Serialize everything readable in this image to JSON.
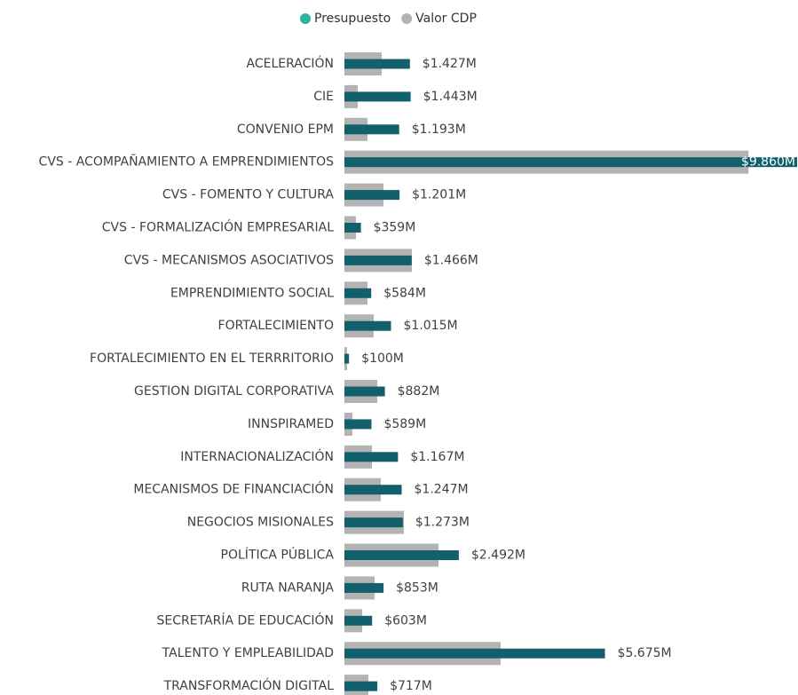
{
  "chart_data": {
    "type": "bar",
    "orientation": "horizontal",
    "categories": [
      "ACELERACIÓN",
      "CIE",
      "CONVENIO EPM",
      "CVS - ACOMPAÑAMIENTO A EMPRENDIMIENTOS",
      "CVS - FOMENTO Y CULTURA",
      "CVS - FORMALIZACIÓN EMPRESARIAL",
      "CVS - MECANISMOS ASOCIATIVOS",
      "EMPRENDIMIENTO SOCIAL",
      "FORTALECIMIENTO",
      "FORTALECIMIENTO EN EL TERRRITORIO",
      "GESTION DIGITAL CORPORATIVA",
      "INNSPIRAMED",
      "INTERNACIONALIZACIÓN",
      "MECANISMOS DE FINANCIACIÓN",
      "NEGOCIOS MISIONALES",
      "POLÍTICA PÚBLICA",
      "RUTA NARANJA",
      "SECRETARÍA DE EDUCACIÓN",
      "TALENTO Y EMPLEABILIDAD",
      "TRANSFORMACIÓN DIGITAL"
    ],
    "series": [
      {
        "name": "Presupuesto",
        "color": "#12606c",
        "values": [
          1427,
          1443,
          1193,
          9860,
          1201,
          359,
          1466,
          584,
          1015,
          100,
          882,
          589,
          1167,
          1247,
          1273,
          2492,
          853,
          603,
          5675,
          717
        ],
        "value_labels": [
          "$1.427M",
          "$1.443M",
          "$1.193M",
          "$9.860M",
          "$1.201M",
          "$359M",
          "$1.466M",
          "$584M",
          "$1.015M",
          "$100M",
          "$882M",
          "$589M",
          "$1.167M",
          "$1.247M",
          "$1.273M",
          "$2.492M",
          "$853M",
          "$603M",
          "$5.675M",
          "$717M"
        ]
      },
      {
        "name": "Valor CDP",
        "color": "#b3b3b3",
        "values": [
          812,
          290,
          503,
          8800,
          851,
          251,
          1470,
          503,
          638,
          58,
          716,
          174,
          600,
          793,
          1296,
          2050,
          658,
          387,
          3404,
          522
        ]
      }
    ],
    "legend": "top"
  }
}
